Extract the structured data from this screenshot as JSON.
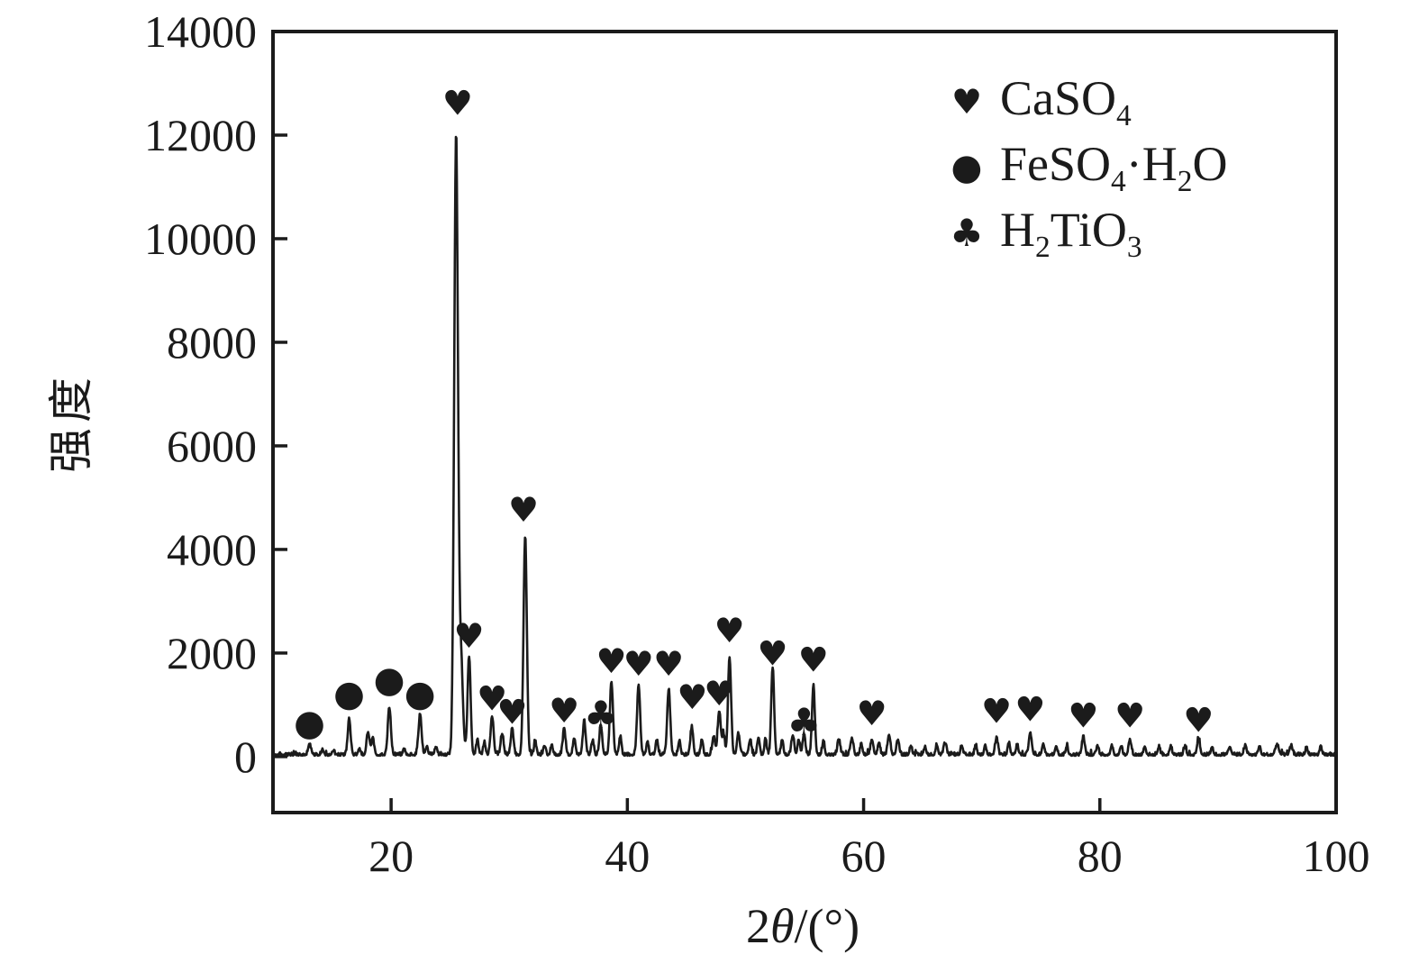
{
  "chart_data": {
    "type": "line",
    "title": "",
    "xlabel_text": "2θ/(°)",
    "xlabel_parts": [
      {
        "text": "2"
      },
      {
        "text": "θ",
        "italic": true
      },
      {
        "text": "/(°)"
      }
    ],
    "ylabel": "强度",
    "xlim": [
      10,
      100
    ],
    "ylim": [
      -1080,
      14000
    ],
    "x_ticks": [
      20,
      40,
      60,
      80,
      100
    ],
    "y_ticks": [
      0,
      2000,
      4000,
      6000,
      8000,
      10000,
      12000,
      14000
    ],
    "grid": false,
    "legend_position": "top-right",
    "line_color": "#1b1b1b",
    "axis_color": "#1b1b1b",
    "background": "#ffffff",
    "noise": {
      "base": 18,
      "amplitude": 60,
      "seed": 1234567
    },
    "peaks": [
      [
        13.1,
        200,
        0.12
      ],
      [
        14.2,
        110,
        0.1
      ],
      [
        15.1,
        90,
        0.1
      ],
      [
        16.45,
        700,
        0.12
      ],
      [
        17.3,
        120,
        0.1
      ],
      [
        18.05,
        430,
        0.13
      ],
      [
        18.45,
        300,
        0.12
      ],
      [
        19.85,
        920,
        0.13
      ],
      [
        21.1,
        120,
        0.1
      ],
      [
        22.45,
        780,
        0.13
      ],
      [
        23.0,
        150,
        0.1
      ],
      [
        23.8,
        160,
        0.1
      ],
      [
        25.5,
        11950,
        0.16
      ],
      [
        25.92,
        1800,
        0.16
      ],
      [
        26.6,
        1900,
        0.13
      ],
      [
        27.3,
        280,
        0.1
      ],
      [
        27.9,
        250,
        0.1
      ],
      [
        28.55,
        730,
        0.13
      ],
      [
        29.4,
        420,
        0.12
      ],
      [
        30.25,
        500,
        0.12
      ],
      [
        31.35,
        4250,
        0.14
      ],
      [
        32.2,
        250,
        0.1
      ],
      [
        33.0,
        180,
        0.1
      ],
      [
        33.6,
        200,
        0.1
      ],
      [
        34.65,
        480,
        0.12
      ],
      [
        35.5,
        330,
        0.11
      ],
      [
        36.35,
        650,
        0.12
      ],
      [
        37.05,
        280,
        0.1
      ],
      [
        37.75,
        580,
        0.12
      ],
      [
        38.65,
        1430,
        0.13
      ],
      [
        39.4,
        360,
        0.1
      ],
      [
        40.95,
        1370,
        0.13
      ],
      [
        41.7,
        260,
        0.1
      ],
      [
        42.5,
        300,
        0.1
      ],
      [
        43.5,
        1280,
        0.13
      ],
      [
        44.4,
        280,
        0.1
      ],
      [
        45.45,
        520,
        0.12
      ],
      [
        46.3,
        300,
        0.1
      ],
      [
        47.3,
        350,
        0.12
      ],
      [
        47.78,
        850,
        0.13
      ],
      [
        48.15,
        400,
        0.1
      ],
      [
        48.65,
        1900,
        0.13
      ],
      [
        49.4,
        420,
        0.12
      ],
      [
        50.4,
        300,
        0.1
      ],
      [
        51.1,
        350,
        0.1
      ],
      [
        51.7,
        300,
        0.1
      ],
      [
        52.3,
        1700,
        0.12
      ],
      [
        53.1,
        300,
        0.1
      ],
      [
        54.0,
        380,
        0.12
      ],
      [
        54.5,
        300,
        0.1
      ],
      [
        54.95,
        380,
        0.12
      ],
      [
        55.75,
        1340,
        0.12
      ],
      [
        56.6,
        280,
        0.1
      ],
      [
        57.9,
        300,
        0.12
      ],
      [
        59.0,
        320,
        0.12
      ],
      [
        59.8,
        200,
        0.1
      ],
      [
        60.7,
        300,
        0.12
      ],
      [
        61.3,
        250,
        0.1
      ],
      [
        62.15,
        400,
        0.12
      ],
      [
        62.9,
        280,
        0.12
      ],
      [
        64.0,
        180,
        0.1
      ],
      [
        65.2,
        160,
        0.1
      ],
      [
        66.2,
        200,
        0.1
      ],
      [
        66.9,
        230,
        0.12
      ],
      [
        68.3,
        170,
        0.1
      ],
      [
        69.5,
        180,
        0.1
      ],
      [
        70.3,
        170,
        0.1
      ],
      [
        71.25,
        320,
        0.12
      ],
      [
        72.3,
        220,
        0.1
      ],
      [
        73.0,
        200,
        0.1
      ],
      [
        74.1,
        440,
        0.12
      ],
      [
        75.2,
        220,
        0.1
      ],
      [
        76.3,
        180,
        0.1
      ],
      [
        77.2,
        170,
        0.1
      ],
      [
        78.6,
        350,
        0.12
      ],
      [
        79.8,
        180,
        0.1
      ],
      [
        81.0,
        170,
        0.1
      ],
      [
        81.8,
        180,
        0.1
      ],
      [
        82.55,
        290,
        0.12
      ],
      [
        83.8,
        170,
        0.1
      ],
      [
        85.0,
        160,
        0.1
      ],
      [
        86.0,
        170,
        0.1
      ],
      [
        87.2,
        160,
        0.1
      ],
      [
        88.35,
        320,
        0.12
      ],
      [
        89.5,
        150,
        0.1
      ],
      [
        91.0,
        160,
        0.12
      ],
      [
        92.3,
        170,
        0.12
      ],
      [
        93.5,
        160,
        0.1
      ],
      [
        95.0,
        190,
        0.15
      ],
      [
        96.2,
        170,
        0.12
      ],
      [
        97.5,
        150,
        0.1
      ],
      [
        98.7,
        140,
        0.1
      ]
    ],
    "marker_series": [
      {
        "phase": "CaSO4",
        "symbol": "♥",
        "symbol_name": "heart",
        "points": [
          [
            25.63,
            12620
          ],
          [
            26.6,
            2330
          ],
          [
            28.55,
            1120
          ],
          [
            30.25,
            860
          ],
          [
            31.2,
            4760
          ],
          [
            34.65,
            885
          ],
          [
            38.65,
            1840
          ],
          [
            40.95,
            1790
          ],
          [
            43.5,
            1790
          ],
          [
            45.5,
            1150
          ],
          [
            47.78,
            1220
          ],
          [
            48.65,
            2430
          ],
          [
            52.3,
            1990
          ],
          [
            55.75,
            1870
          ],
          [
            60.7,
            830
          ],
          [
            71.25,
            880
          ],
          [
            74.1,
            910
          ],
          [
            78.6,
            790
          ],
          [
            82.55,
            790
          ],
          [
            88.35,
            700
          ]
        ]
      },
      {
        "phase": "FeSO4·H2O",
        "symbol": "●",
        "symbol_name": "filled-circle",
        "points": [
          [
            13.1,
            640
          ],
          [
            16.45,
            1210
          ],
          [
            19.85,
            1475
          ],
          [
            22.45,
            1210
          ]
        ]
      },
      {
        "phase": "H2TiO3",
        "symbol": "♣",
        "symbol_name": "club",
        "points": [
          [
            37.75,
            810
          ],
          [
            54.95,
            670
          ]
        ]
      }
    ],
    "legend": {
      "entries": [
        {
          "symbol": "♥",
          "symbol_name": "heart",
          "label_text": "CaSO4",
          "label_parts": [
            {
              "text": "CaSO"
            },
            {
              "text": "4",
              "sub": true
            }
          ]
        },
        {
          "symbol": "●",
          "symbol_name": "filled-circle",
          "label_text": "FeSO4·H2O",
          "label_parts": [
            {
              "text": "FeSO"
            },
            {
              "text": "4",
              "sub": true
            },
            {
              "text": "·H"
            },
            {
              "text": "2",
              "sub": true
            },
            {
              "text": "O"
            }
          ]
        },
        {
          "symbol": "♣",
          "symbol_name": "club",
          "label_text": "H2TiO3",
          "label_parts": [
            {
              "text": "H"
            },
            {
              "text": "2",
              "sub": true
            },
            {
              "text": "TiO"
            },
            {
              "text": "3",
              "sub": true
            }
          ]
        }
      ]
    }
  }
}
